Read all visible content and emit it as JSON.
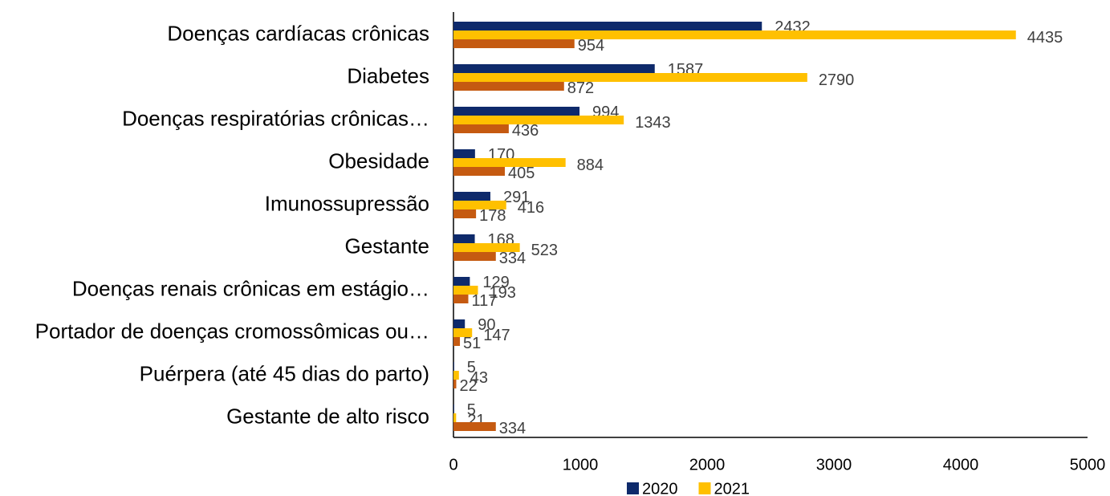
{
  "chart_data": {
    "type": "bar",
    "orientation": "horizontal",
    "categories": [
      "Doenças cardíacas crônicas",
      "Diabetes",
      "Doenças respiratórias crônicas…",
      "Obesidade",
      "Imunossupressão",
      "Gestante",
      "Doenças renais crônicas em estágio…",
      "Portador de doenças cromossômicas ou…",
      "Puérpera (até 45 dias do parto)",
      "Gestante de alto risco"
    ],
    "series": [
      {
        "name": "2020",
        "color": "#0e2a6b",
        "values": [
          2432,
          1587,
          994,
          170,
          291,
          168,
          129,
          90,
          5,
          5
        ]
      },
      {
        "name": "2021",
        "color": "#ffc000",
        "values": [
          4435,
          2790,
          1343,
          884,
          416,
          523,
          193,
          147,
          43,
          21
        ]
      },
      {
        "color": "#c55a11",
        "values": [
          954,
          872,
          436,
          405,
          178,
          334,
          117,
          51,
          22,
          334
        ]
      }
    ],
    "xlim": [
      0,
      5000
    ],
    "xticks": [
      0,
      1000,
      2000,
      3000,
      4000,
      5000
    ],
    "legend": "bottom"
  }
}
